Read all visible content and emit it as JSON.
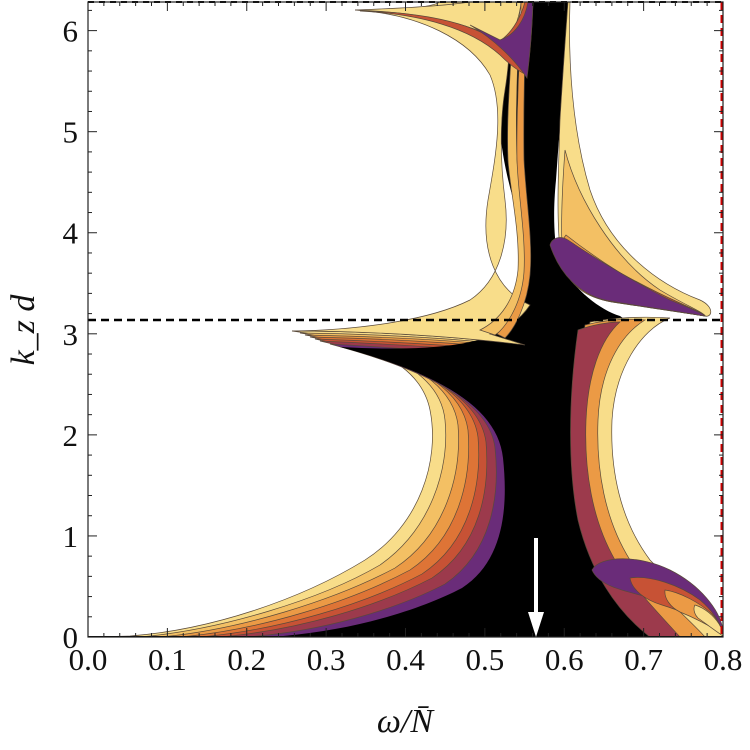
{
  "chart_data": {
    "type": "heatmap",
    "title": "",
    "xlabel": "ω/N̄",
    "ylabel": "k_z d",
    "xlim": [
      0.0,
      0.8
    ],
    "ylim": [
      0.0,
      6.2832
    ],
    "x_ticks": [
      "0.0",
      "0.1",
      "0.2",
      "0.3",
      "0.4",
      "0.5",
      "0.6",
      "0.7",
      "0.8"
    ],
    "y_ticks": [
      "0",
      "1",
      "2",
      "3",
      "4",
      "5",
      "6"
    ],
    "colormap": [
      "#f8dd8a",
      "#f3c064",
      "#eb9a45",
      "#de7436",
      "#c75235",
      "#9c3a4c",
      "#6a2c79",
      "#3e1d5e",
      "#000000"
    ],
    "reference_lines": [
      {
        "orientation": "horizontal",
        "y": 3.1416,
        "style": "dashed",
        "color": "#000000"
      },
      {
        "orientation": "horizontal",
        "y": 6.2832,
        "style": "dashed",
        "color": "#000000"
      },
      {
        "orientation": "vertical",
        "x": 0.8,
        "style": "dashed",
        "color": "#cc0000"
      }
    ],
    "annotations": [
      {
        "type": "arrow",
        "x": 0.57,
        "y_from": 0.95,
        "y_to": 0.0,
        "color": "#ffffff",
        "direction": "down"
      }
    ]
  }
}
